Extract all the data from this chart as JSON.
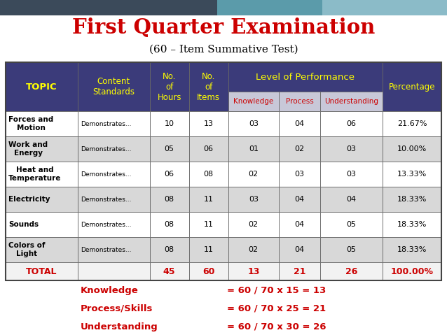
{
  "title": "First Quarter Examination",
  "subtitle": "(60 – Item Summative Test)",
  "title_color": "#CC0000",
  "subtitle_color": "#000000",
  "header_bg": "#3B3B7A",
  "header_text_color": "#FFFF00",
  "subheader_bg": "#C8C8D8",
  "subheader_text_color": "#CC0000",
  "row_bg_odd": "#FFFFFF",
  "row_bg_even": "#D8D8D8",
  "total_text_color": "#CC0000",
  "formula_color": "#CC0000",
  "body_text_color": "#000000",
  "level_of_performance_label": "Level of Performance",
  "outer_bg": "#FFFFFF",
  "deco_bar1": "#3B4A5A",
  "deco_bar2": "#5B9BAA",
  "deco_bar3": "#8BBBC8",
  "rows": [
    [
      "Forces and\nMotion",
      "Demonstrates...",
      "10",
      "13",
      "03",
      "04",
      "06",
      "21.67%"
    ],
    [
      "Work and\nEnergy",
      "Demonstrates...",
      "05",
      "06",
      "01",
      "02",
      "03",
      "10.00%"
    ],
    [
      "Heat and\nTemperature",
      "Demonstrates...",
      "06",
      "08",
      "02",
      "03",
      "03",
      "13.33%"
    ],
    [
      "Electricity",
      "Demonstrates...",
      "08",
      "11",
      "03",
      "04",
      "04",
      "18.33%"
    ],
    [
      "Sounds",
      "Demonstrates...",
      "08",
      "11",
      "02",
      "04",
      "05",
      "18.33%"
    ],
    [
      "Colors of\nLight",
      "Demonstrates...",
      "08",
      "11",
      "02",
      "04",
      "05",
      "18.33%"
    ]
  ],
  "total_row": [
    "TOTAL",
    "",
    "45",
    "60",
    "13",
    "21",
    "26",
    "100.00%"
  ],
  "formulas": [
    [
      "Knowledge",
      "= 60 / 70 x 15 = 13"
    ],
    [
      "Process/Skills",
      "= 60 / 70 x 25 = 21"
    ],
    [
      "Understanding",
      "= 60 / 70 x 30 = 26"
    ]
  ]
}
